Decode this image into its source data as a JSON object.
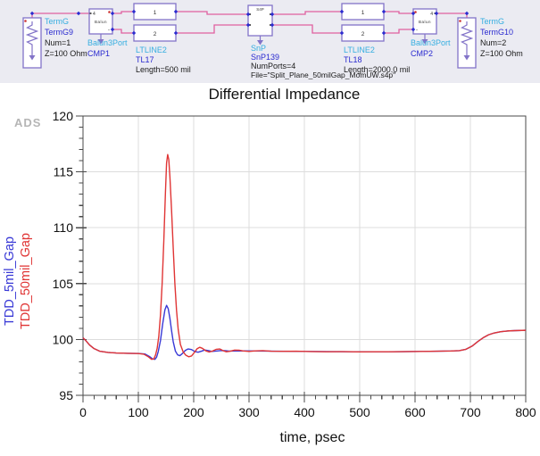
{
  "watermark": "ADS",
  "schematic": {
    "term1": {
      "type": "TermG",
      "name": "TermG9",
      "params": [
        "Num=1",
        "Z=100 Ohm"
      ]
    },
    "balun1": {
      "type": "Balun3Port",
      "name": "CMP1",
      "inner": "Balun",
      "pin_label": "4",
      "minus": "-"
    },
    "tl1": {
      "type": "LTLINE2",
      "name": "TL17",
      "params": [
        "Length=500 mil"
      ],
      "box_labels": [
        "1",
        "2"
      ]
    },
    "snp": {
      "type": "SnP",
      "name": "SnP139",
      "inner": "S4P",
      "params": [
        "NumPorts=4",
        "File=\"Split_Plane_50milGap_MomUW.s4p\""
      ]
    },
    "tl2": {
      "type": "LTLINE2",
      "name": "TL18",
      "params": [
        "Length=2000.0 mil"
      ],
      "box_labels": [
        "1",
        "2"
      ]
    },
    "balun2": {
      "type": "Balun3Port",
      "name": "CMP2",
      "inner": "Balun",
      "pin_label": "4",
      "minus": "-"
    },
    "term2": {
      "type": "TermG",
      "name": "TermG10",
      "params": [
        "Num=2",
        "Z=100 Ohm"
      ]
    },
    "colors": {
      "type_label": "#35aee0",
      "instance_label": "#2b2bd0",
      "param_label": "#1a1a1a",
      "wire": "#e060a0",
      "component": "#8273c8",
      "marker": "#2b2bd0",
      "pin_dot": "#cc3333"
    }
  },
  "chart_data": {
    "type": "line",
    "title": "Differential Impedance",
    "xlabel": "time, psec",
    "ylabel": "",
    "xlim": [
      0,
      800
    ],
    "ylim": [
      95,
      120
    ],
    "x_major": 100,
    "x_minor": 20,
    "y_major": 5,
    "y_minor": 1,
    "grid": true,
    "legend_position": "left-rotated",
    "x_ticks": [
      0,
      100,
      200,
      300,
      400,
      500,
      600,
      700,
      800
    ],
    "x_tick_labels": [
      "0",
      "100",
      "200",
      "300",
      "400",
      "500",
      "600",
      "700",
      "800"
    ],
    "y_ticks": [
      95,
      100,
      105,
      110,
      115,
      120
    ],
    "y_tick_labels": [
      "95",
      "100",
      "105",
      "110",
      "115",
      "120"
    ],
    "frame_color": "#4a4a4a",
    "grid_color": "#dcdcdc",
    "series": [
      {
        "name": "TDD_5mil_Gap",
        "color": "#3939d6",
        "points": [
          [
            0,
            100.15
          ],
          [
            5,
            99.9
          ],
          [
            12,
            99.5
          ],
          [
            20,
            99.18
          ],
          [
            30,
            98.95
          ],
          [
            45,
            98.84
          ],
          [
            60,
            98.79
          ],
          [
            80,
            98.76
          ],
          [
            100,
            98.75
          ],
          [
            112,
            98.7
          ],
          [
            120,
            98.48
          ],
          [
            126,
            98.25
          ],
          [
            130,
            98.22
          ],
          [
            133,
            98.42
          ],
          [
            136,
            98.92
          ],
          [
            140,
            99.9
          ],
          [
            144,
            101.4
          ],
          [
            148,
            102.65
          ],
          [
            151,
            103.05
          ],
          [
            154,
            102.75
          ],
          [
            157,
            101.9
          ],
          [
            160,
            100.8
          ],
          [
            163,
            99.8
          ],
          [
            167,
            98.95
          ],
          [
            171,
            98.62
          ],
          [
            175,
            98.55
          ],
          [
            180,
            98.76
          ],
          [
            185,
            99.02
          ],
          [
            190,
            99.15
          ],
          [
            196,
            99.1
          ],
          [
            202,
            98.92
          ],
          [
            208,
            98.86
          ],
          [
            214,
            98.95
          ],
          [
            220,
            99.06
          ],
          [
            227,
            99.0
          ],
          [
            233,
            98.93
          ],
          [
            240,
            98.96
          ],
          [
            248,
            99.0
          ],
          [
            256,
            99.0
          ],
          [
            264,
            98.96
          ],
          [
            275,
            98.97
          ],
          [
            290,
            98.98
          ],
          [
            310,
            98.97
          ],
          [
            330,
            98.96
          ],
          [
            350,
            98.95
          ],
          [
            375,
            98.94
          ],
          [
            400,
            98.93
          ],
          [
            430,
            98.92
          ],
          [
            460,
            98.91
          ],
          [
            490,
            98.9
          ],
          [
            520,
            98.9
          ],
          [
            550,
            98.9
          ],
          [
            580,
            98.91
          ],
          [
            610,
            98.93
          ],
          [
            640,
            98.95
          ],
          [
            665,
            98.97
          ],
          [
            680,
            99.0
          ],
          [
            692,
            99.12
          ],
          [
            703,
            99.4
          ],
          [
            713,
            99.8
          ],
          [
            723,
            100.15
          ],
          [
            733,
            100.42
          ],
          [
            743,
            100.58
          ],
          [
            755,
            100.7
          ],
          [
            767,
            100.76
          ],
          [
            780,
            100.79
          ],
          [
            800,
            100.82
          ]
        ]
      },
      {
        "name": "TDD_50mil_Gap",
        "color": "#e03535",
        "points": [
          [
            0,
            100.15
          ],
          [
            5,
            99.9
          ],
          [
            12,
            99.5
          ],
          [
            20,
            99.18
          ],
          [
            30,
            98.95
          ],
          [
            45,
            98.84
          ],
          [
            60,
            98.79
          ],
          [
            80,
            98.76
          ],
          [
            100,
            98.74
          ],
          [
            110,
            98.68
          ],
          [
            118,
            98.45
          ],
          [
            124,
            98.22
          ],
          [
            128,
            98.26
          ],
          [
            131,
            98.6
          ],
          [
            134,
            99.2
          ],
          [
            137,
            100.3
          ],
          [
            140,
            102.2
          ],
          [
            143,
            105.0
          ],
          [
            146,
            108.8
          ],
          [
            149,
            113.2
          ],
          [
            151,
            115.8
          ],
          [
            153,
            116.55
          ],
          [
            155,
            116.1
          ],
          [
            157,
            114.6
          ],
          [
            160,
            111.6
          ],
          [
            163,
            108.2
          ],
          [
            166,
            105.0
          ],
          [
            169,
            102.6
          ],
          [
            172,
            100.9
          ],
          [
            176,
            99.55
          ],
          [
            181,
            98.88
          ],
          [
            186,
            98.58
          ],
          [
            191,
            98.45
          ],
          [
            196,
            98.52
          ],
          [
            201,
            98.82
          ],
          [
            206,
            99.16
          ],
          [
            211,
            99.3
          ],
          [
            216,
            99.2
          ],
          [
            222,
            98.98
          ],
          [
            228,
            98.88
          ],
          [
            234,
            98.96
          ],
          [
            241,
            99.12
          ],
          [
            247,
            99.15
          ],
          [
            253,
            99.0
          ],
          [
            259,
            98.9
          ],
          [
            266,
            98.95
          ],
          [
            274,
            99.05
          ],
          [
            282,
            99.04
          ],
          [
            290,
            98.97
          ],
          [
            300,
            98.93
          ],
          [
            312,
            98.98
          ],
          [
            325,
            99.0
          ],
          [
            340,
            98.95
          ],
          [
            360,
            98.94
          ],
          [
            385,
            98.95
          ],
          [
            410,
            98.92
          ],
          [
            440,
            98.9
          ],
          [
            470,
            98.91
          ],
          [
            500,
            98.89
          ],
          [
            530,
            98.9
          ],
          [
            560,
            98.9
          ],
          [
            590,
            98.92
          ],
          [
            615,
            98.93
          ],
          [
            640,
            98.95
          ],
          [
            665,
            98.97
          ],
          [
            680,
            99.0
          ],
          [
            692,
            99.12
          ],
          [
            703,
            99.4
          ],
          [
            713,
            99.8
          ],
          [
            723,
            100.15
          ],
          [
            733,
            100.42
          ],
          [
            743,
            100.58
          ],
          [
            755,
            100.7
          ],
          [
            767,
            100.76
          ],
          [
            780,
            100.79
          ],
          [
            800,
            100.82
          ]
        ]
      }
    ]
  }
}
